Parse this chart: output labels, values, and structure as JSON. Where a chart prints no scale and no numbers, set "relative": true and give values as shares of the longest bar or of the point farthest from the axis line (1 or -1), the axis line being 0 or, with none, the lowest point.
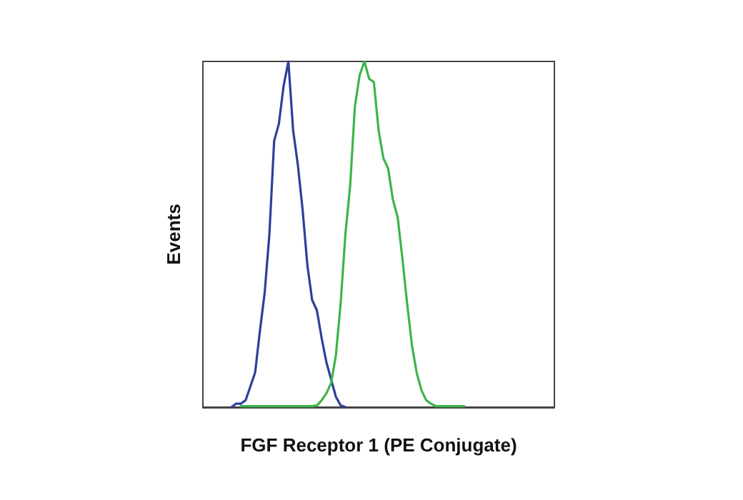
{
  "chart_data": {
    "type": "line",
    "relative": true,
    "xlabel": "FGF Receptor 1 (PE Conjugate)",
    "ylabel": "Events",
    "grid": false,
    "line_style": "solid",
    "categories": [
      null,
      null,
      null,
      null,
      null,
      null,
      null,
      null,
      null,
      null,
      null,
      null,
      null,
      null,
      null,
      null,
      null,
      null,
      null,
      null,
      null,
      null,
      null,
      null,
      null,
      null,
      null,
      null,
      null,
      null,
      null,
      null,
      null,
      null,
      null,
      null,
      null,
      null,
      null,
      null,
      null,
      null,
      null,
      null,
      null,
      null,
      null,
      null,
      null,
      null,
      null,
      null,
      null,
      null,
      null,
      null,
      null,
      null,
      null,
      null,
      null,
      null,
      null,
      null,
      null,
      null,
      null,
      null,
      null,
      null,
      null,
      null,
      null,
      null,
      null
    ],
    "series": [
      {
        "color": "#2e3f9a",
        "values": [
          null,
          null,
          null,
          null,
          null,
          null,
          0,
          0.01,
          0.01,
          0.02,
          0.06,
          0.1,
          0.22,
          0.33,
          0.5,
          0.77,
          0.82,
          0.93,
          1,
          0.8,
          0.7,
          0.57,
          0.41,
          0.31,
          0.28,
          0.2,
          0.13,
          0.08,
          0.03,
          0.005,
          0,
          null,
          null,
          null,
          null,
          null,
          null,
          null,
          null,
          null,
          null,
          null,
          null,
          null,
          null,
          null,
          null,
          null,
          null,
          null,
          null,
          null,
          null,
          null,
          null,
          null,
          null,
          null,
          null,
          null,
          null,
          null,
          null,
          null,
          null,
          null,
          null,
          null,
          null,
          null,
          null,
          null,
          null,
          null,
          null
        ]
      },
      {
        "color": "#3cb54a",
        "values": [
          null,
          null,
          null,
          null,
          null,
          null,
          null,
          null,
          0.003,
          0.003,
          0.003,
          0.003,
          0.003,
          0.003,
          0.003,
          0.003,
          0.003,
          0.003,
          0.003,
          0.003,
          0.003,
          0.003,
          0.003,
          0.003,
          0.005,
          0.02,
          0.04,
          0.07,
          0.15,
          0.3,
          0.5,
          0.64,
          0.87,
          0.96,
          1,
          0.95,
          0.94,
          0.8,
          0.72,
          0.69,
          0.6,
          0.55,
          0.43,
          0.3,
          0.18,
          0.1,
          0.05,
          0.02,
          0.01,
          0.003,
          0.003,
          0.003,
          0.003,
          0.003,
          0.003,
          0.003,
          null,
          null,
          null,
          null,
          null,
          null,
          null,
          null,
          null,
          null,
          null,
          null,
          null,
          null,
          null,
          null,
          null,
          null,
          null
        ]
      }
    ]
  }
}
